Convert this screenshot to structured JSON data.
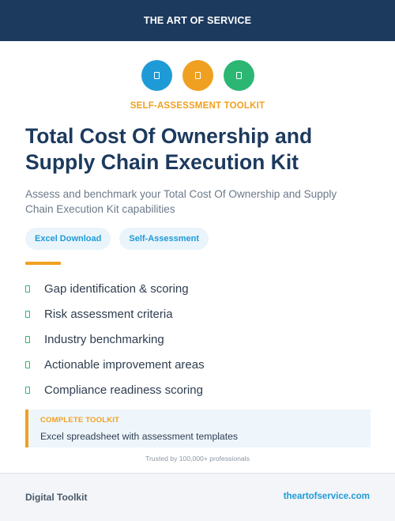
{
  "header": {
    "brand": "THE ART OF SERVICE"
  },
  "icons": [
    {
      "name": "document-icon",
      "color": "#1e9bd7"
    },
    {
      "name": "document-icon",
      "color": "#f0a020"
    },
    {
      "name": "document-icon",
      "color": "#2bb673"
    }
  ],
  "kicker": "SELF-ASSESSMENT TOOLKIT",
  "title_line1": "Total Cost Of Ownership and",
  "title_line2": "Supply Chain Execution Kit",
  "subtitle_line1": "Assess and benchmark your Total Cost Of Ownership and Supply",
  "subtitle_line2": "Chain Execution Kit capabilities",
  "tags": [
    "Excel Download",
    "Self-Assessment"
  ],
  "features": [
    "Gap identification & scoring",
    "Risk assessment criteria",
    "Industry benchmarking",
    "Actionable improvement areas",
    "Compliance readiness scoring"
  ],
  "callout": {
    "label": "COMPLETE TOOLKIT",
    "description": "Excel spreadsheet with assessment templates"
  },
  "trusted": "Trusted by 100,000+ professionals",
  "footer": {
    "left": "Digital Toolkit",
    "right": "theartofservice.com"
  },
  "colors": {
    "navy": "#1c3a5e",
    "blue": "#1e9bd7",
    "orange": "#f0a020",
    "green": "#2bb673"
  }
}
